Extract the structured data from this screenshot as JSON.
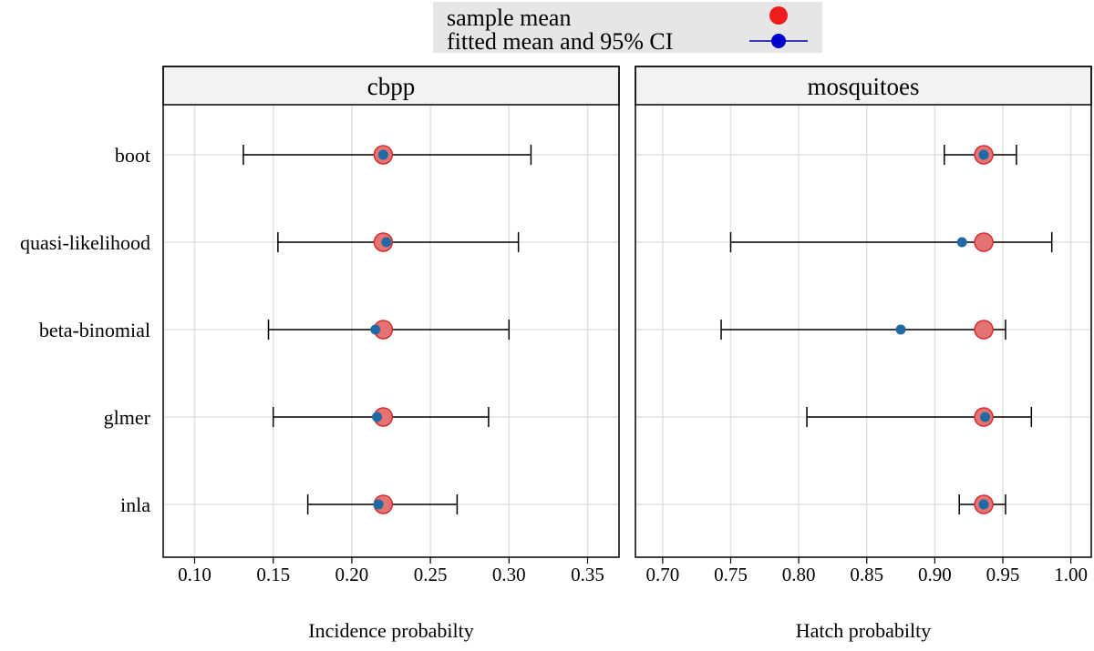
{
  "legend": {
    "sample_mean_label": "sample mean",
    "fitted_label": "fitted mean and 95% CI"
  },
  "colors": {
    "sample_fill": "#e57373",
    "sample_stroke": "#d32f2f",
    "legend_sample": "#ee1c1c",
    "fitted_point": "#1f6aa5",
    "legend_fitted": "#0000cc",
    "legend_line": "#0000aa",
    "grid": "#e2e2e2",
    "strip_bg": "#f2f2f2",
    "legend_bg": "#e6e6e6"
  },
  "chart_data": [
    {
      "type": "dot-errorbar",
      "title": "cbpp",
      "xlabel": "Incidence probabilty",
      "categories": [
        "boot",
        "quasi-likelihood",
        "beta-binomial",
        "glmer",
        "inla"
      ],
      "xlim": [
        0.08,
        0.37
      ],
      "xticks": [
        0.1,
        0.15,
        0.2,
        0.25,
        0.3,
        0.35
      ],
      "xtick_labels": [
        "0.10",
        "0.15",
        "0.20",
        "0.25",
        "0.30",
        "0.35"
      ],
      "sample_mean": [
        0.22,
        0.22,
        0.22,
        0.22,
        0.22
      ],
      "fitted": [
        0.22,
        0.222,
        0.215,
        0.216,
        0.217
      ],
      "ci_lower": [
        0.131,
        0.153,
        0.147,
        0.15,
        0.172
      ],
      "ci_upper": [
        0.314,
        0.306,
        0.3,
        0.287,
        0.267
      ]
    },
    {
      "type": "dot-errorbar",
      "title": "mosquitoes",
      "xlabel": "Hatch probabilty",
      "categories": [
        "boot",
        "quasi-likelihood",
        "beta-binomial",
        "glmer",
        "inla"
      ],
      "xlim": [
        0.68,
        1.015
      ],
      "xticks": [
        0.7,
        0.75,
        0.8,
        0.85,
        0.9,
        0.95,
        1.0
      ],
      "xtick_labels": [
        "0.70",
        "0.75",
        "0.80",
        "0.85",
        "0.90",
        "0.95",
        "1.00"
      ],
      "sample_mean": [
        0.936,
        0.936,
        0.936,
        0.936,
        0.936
      ],
      "fitted": [
        0.936,
        0.92,
        0.875,
        0.937,
        0.936
      ],
      "ci_lower": [
        0.907,
        0.75,
        0.743,
        0.806,
        0.918
      ],
      "ci_upper": [
        0.96,
        0.986,
        0.952,
        0.971,
        0.952
      ]
    }
  ]
}
